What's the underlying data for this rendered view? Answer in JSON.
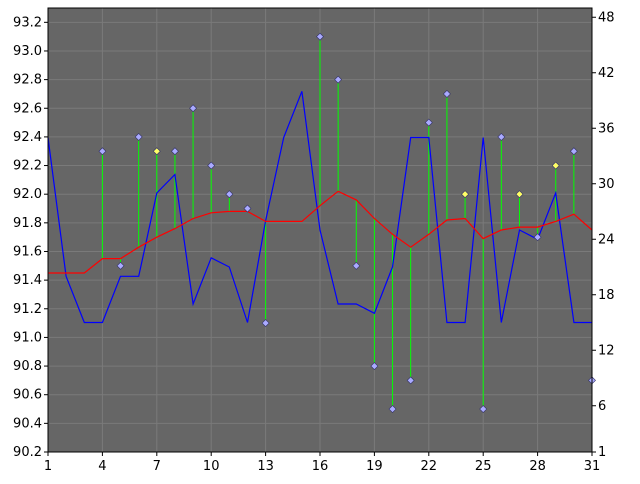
{
  "chart_data": {
    "type": "line",
    "title": "",
    "background_color": "#ffffff",
    "plot_background_color": "#666666",
    "grid": true,
    "x": {
      "min": 1,
      "max": 31,
      "ticks": [
        "1",
        "4",
        "7",
        "10",
        "13",
        "16",
        "19",
        "22",
        "25",
        "28",
        "31"
      ]
    },
    "y_left": {
      "min": 90.2,
      "max": 93.3,
      "ticks": [
        "90.2",
        "90.4",
        "90.6",
        "90.8",
        "91.0",
        "91.2",
        "91.4",
        "91.6",
        "91.8",
        "92.0",
        "92.2",
        "92.4",
        "92.6",
        "92.8",
        "93.0",
        "93.2"
      ]
    },
    "y_right": {
      "min": 1,
      "max": 49,
      "ticks": [
        "1",
        "6",
        "12",
        "18",
        "24",
        "30",
        "36",
        "42",
        "48"
      ]
    },
    "series": [
      {
        "type": "line",
        "axis": "right",
        "color": "#0000ff",
        "x": [
          1,
          2,
          3,
          4,
          5,
          6,
          7,
          8,
          9,
          10,
          11,
          12,
          13,
          14,
          15,
          16,
          17,
          18,
          19,
          20,
          21,
          22,
          23,
          24,
          25,
          26,
          27,
          28,
          29,
          30,
          31
        ],
        "values": [
          35,
          20,
          15,
          15,
          20,
          20,
          29,
          31,
          17,
          22,
          21,
          15,
          26,
          35,
          40,
          25,
          17,
          17,
          16,
          21,
          35,
          35,
          15,
          15,
          35,
          15,
          25,
          24,
          29,
          15,
          15
        ]
      },
      {
        "type": "line",
        "axis": "left",
        "color": "#ff0000",
        "x": [
          1,
          2,
          3,
          4,
          5,
          6,
          7,
          8,
          9,
          10,
          11,
          12,
          13,
          14,
          15,
          16,
          17,
          18,
          19,
          20,
          21,
          22,
          23,
          24,
          25,
          26,
          27,
          28,
          29,
          30,
          31
        ],
        "values": [
          91.45,
          91.45,
          91.45,
          91.55,
          91.55,
          91.63,
          91.7,
          91.76,
          91.83,
          91.87,
          91.88,
          91.88,
          91.81,
          91.81,
          91.81,
          91.92,
          92.02,
          91.96,
          91.83,
          91.72,
          91.63,
          91.72,
          91.82,
          91.83,
          91.69,
          91.75,
          91.77,
          91.77,
          91.81,
          91.86,
          91.75
        ]
      },
      {
        "type": "marker",
        "axis": "left",
        "x": [
          4,
          5,
          6,
          7,
          8,
          9,
          10,
          11,
          12,
          13,
          16,
          17,
          18,
          19,
          20,
          21,
          22,
          23,
          24,
          25,
          26,
          27,
          28,
          29,
          30,
          31
        ],
        "values": [
          92.3,
          91.5,
          92.4,
          92.3,
          92.3,
          92.6,
          92.2,
          92.0,
          91.9,
          91.1,
          93.1,
          92.8,
          91.5,
          90.8,
          90.5,
          90.7,
          92.5,
          92.7,
          92.0,
          90.5,
          92.4,
          92.0,
          91.7,
          92.2,
          92.3,
          90.7
        ],
        "colors": [
          "#aaaaff",
          "#aaaaff",
          "#aaaaff",
          "#ffff66",
          "#aaaaff",
          "#aaaaff",
          "#aaaaff",
          "#aaaaff",
          "#aaaaff",
          "#aaaaff",
          "#aaaaff",
          "#aaaaff",
          "#aaaaff",
          "#aaaaff",
          "#aaaaff",
          "#aaaaff",
          "#aaaaff",
          "#aaaaff",
          "#ffff66",
          "#aaaaff",
          "#aaaaff",
          "#ffff66",
          "#aaaaff",
          "#ffff66",
          "#aaaaff",
          "#aaaaff"
        ],
        "stem_color": "#00ff00"
      }
    ]
  }
}
